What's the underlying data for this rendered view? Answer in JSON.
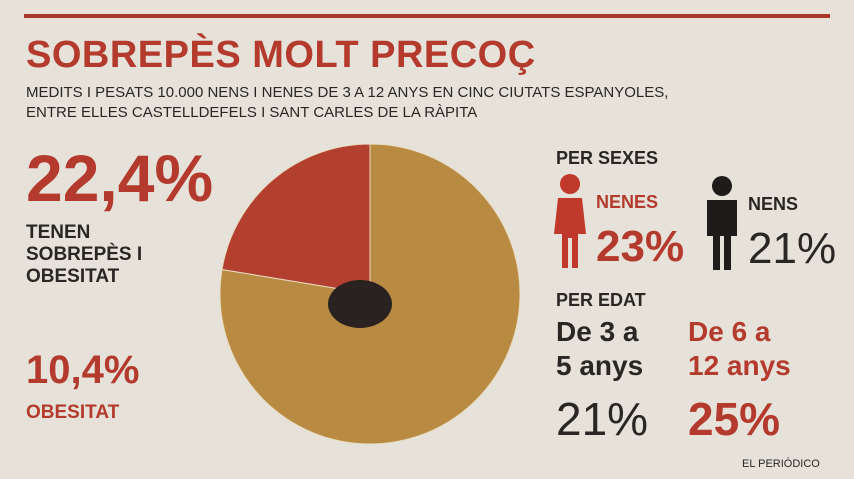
{
  "chart_data": {
    "type": "pie",
    "title": "SOBREPÈS MOLT PRECOÇ",
    "subtitle": [
      "MEDITS I PESATS 10.000 NENS I NENES DE 3 A 12 ANYS EN CINC CIUTATS ESPANYOLES,",
      "ENTRE ELLES CASTELLDEFELS I SANT CARLES DE LA RÀPITA"
    ],
    "categories": [
      "TENEN SOBREPÈS I OBESITAT",
      null
    ],
    "values": [
      22.4,
      77.6
    ],
    "value_labels": [
      "22,4%",
      null
    ],
    "colors": [
      "#b3402f",
      "#b98a42"
    ]
  },
  "obesity": {
    "value": "10,4%",
    "label": "OBESITAT"
  },
  "by_sex": {
    "heading": "PER SEXES",
    "groups": [
      {
        "label": "NENES",
        "value": "23%"
      },
      {
        "label": "NENS",
        "value": "21%"
      }
    ]
  },
  "by_age": {
    "heading": "PER EDAT",
    "groups": [
      {
        "label": [
          "De 3 a",
          "5 anys"
        ],
        "value": "21%"
      },
      {
        "label": [
          "De 6 a",
          "12 anys"
        ],
        "value": "25%"
      }
    ]
  },
  "source": "EL PERIÓDICO"
}
